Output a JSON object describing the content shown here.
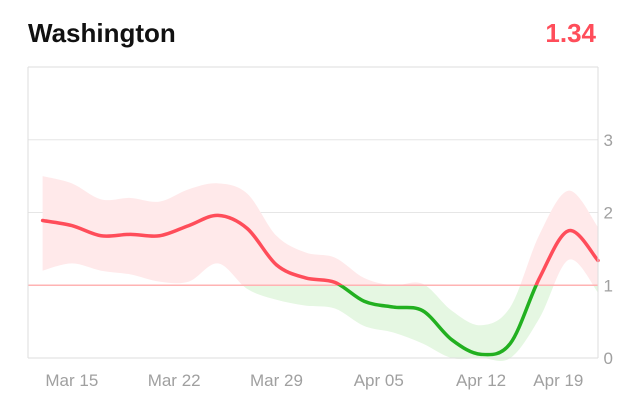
{
  "header": {
    "title": "Washington",
    "value": "1.34"
  },
  "colors": {
    "above": "#ff4d5a",
    "below": "#22b020",
    "band_above": "#ffe9ea",
    "band_below": "#e5f7e2",
    "threshold": "#ffb3b3",
    "grid": "#e6e6e6",
    "frame": "#dddddd",
    "tick_text": "#a0a0a0"
  },
  "chart_data": {
    "type": "line",
    "title": "Washington",
    "xlabel": "",
    "ylabel": "",
    "x_ticks": [
      "Mar 15",
      "Mar 22",
      "Mar 29",
      "Apr 05",
      "Apr 12",
      "Apr 19"
    ],
    "y_ticks": [
      0,
      1,
      2,
      3
    ],
    "xlim": [
      "2020-03-12",
      "2020-04-20"
    ],
    "ylim": [
      0,
      4
    ],
    "threshold": 1,
    "grid": "horizontal",
    "x": [
      "2020-03-13",
      "2020-03-15",
      "2020-03-17",
      "2020-03-19",
      "2020-03-21",
      "2020-03-23",
      "2020-03-25",
      "2020-03-27",
      "2020-03-29",
      "2020-03-31",
      "2020-04-02",
      "2020-04-04",
      "2020-04-06",
      "2020-04-08",
      "2020-04-10",
      "2020-04-12",
      "2020-04-14",
      "2020-04-16",
      "2020-04-18",
      "2020-04-20"
    ],
    "series": [
      {
        "values": [
          1.89,
          1.82,
          1.68,
          1.7,
          1.68,
          1.82,
          1.96,
          1.78,
          1.28,
          1.1,
          1.04,
          0.78,
          0.7,
          0.65,
          0.25,
          0.05,
          0.2,
          1.1,
          1.75,
          1.34
        ],
        "lower": [
          1.2,
          1.3,
          1.2,
          1.15,
          1.05,
          1.05,
          1.3,
          0.95,
          0.8,
          0.72,
          0.68,
          0.44,
          0.35,
          0.2,
          0.0,
          0.0,
          0.0,
          0.55,
          1.35,
          0.9
        ],
        "upper": [
          2.5,
          2.4,
          2.18,
          2.2,
          2.15,
          2.32,
          2.4,
          2.26,
          1.68,
          1.45,
          1.38,
          1.1,
          1.0,
          1.02,
          0.65,
          0.45,
          0.7,
          1.7,
          2.3,
          1.8
        ]
      }
    ]
  }
}
